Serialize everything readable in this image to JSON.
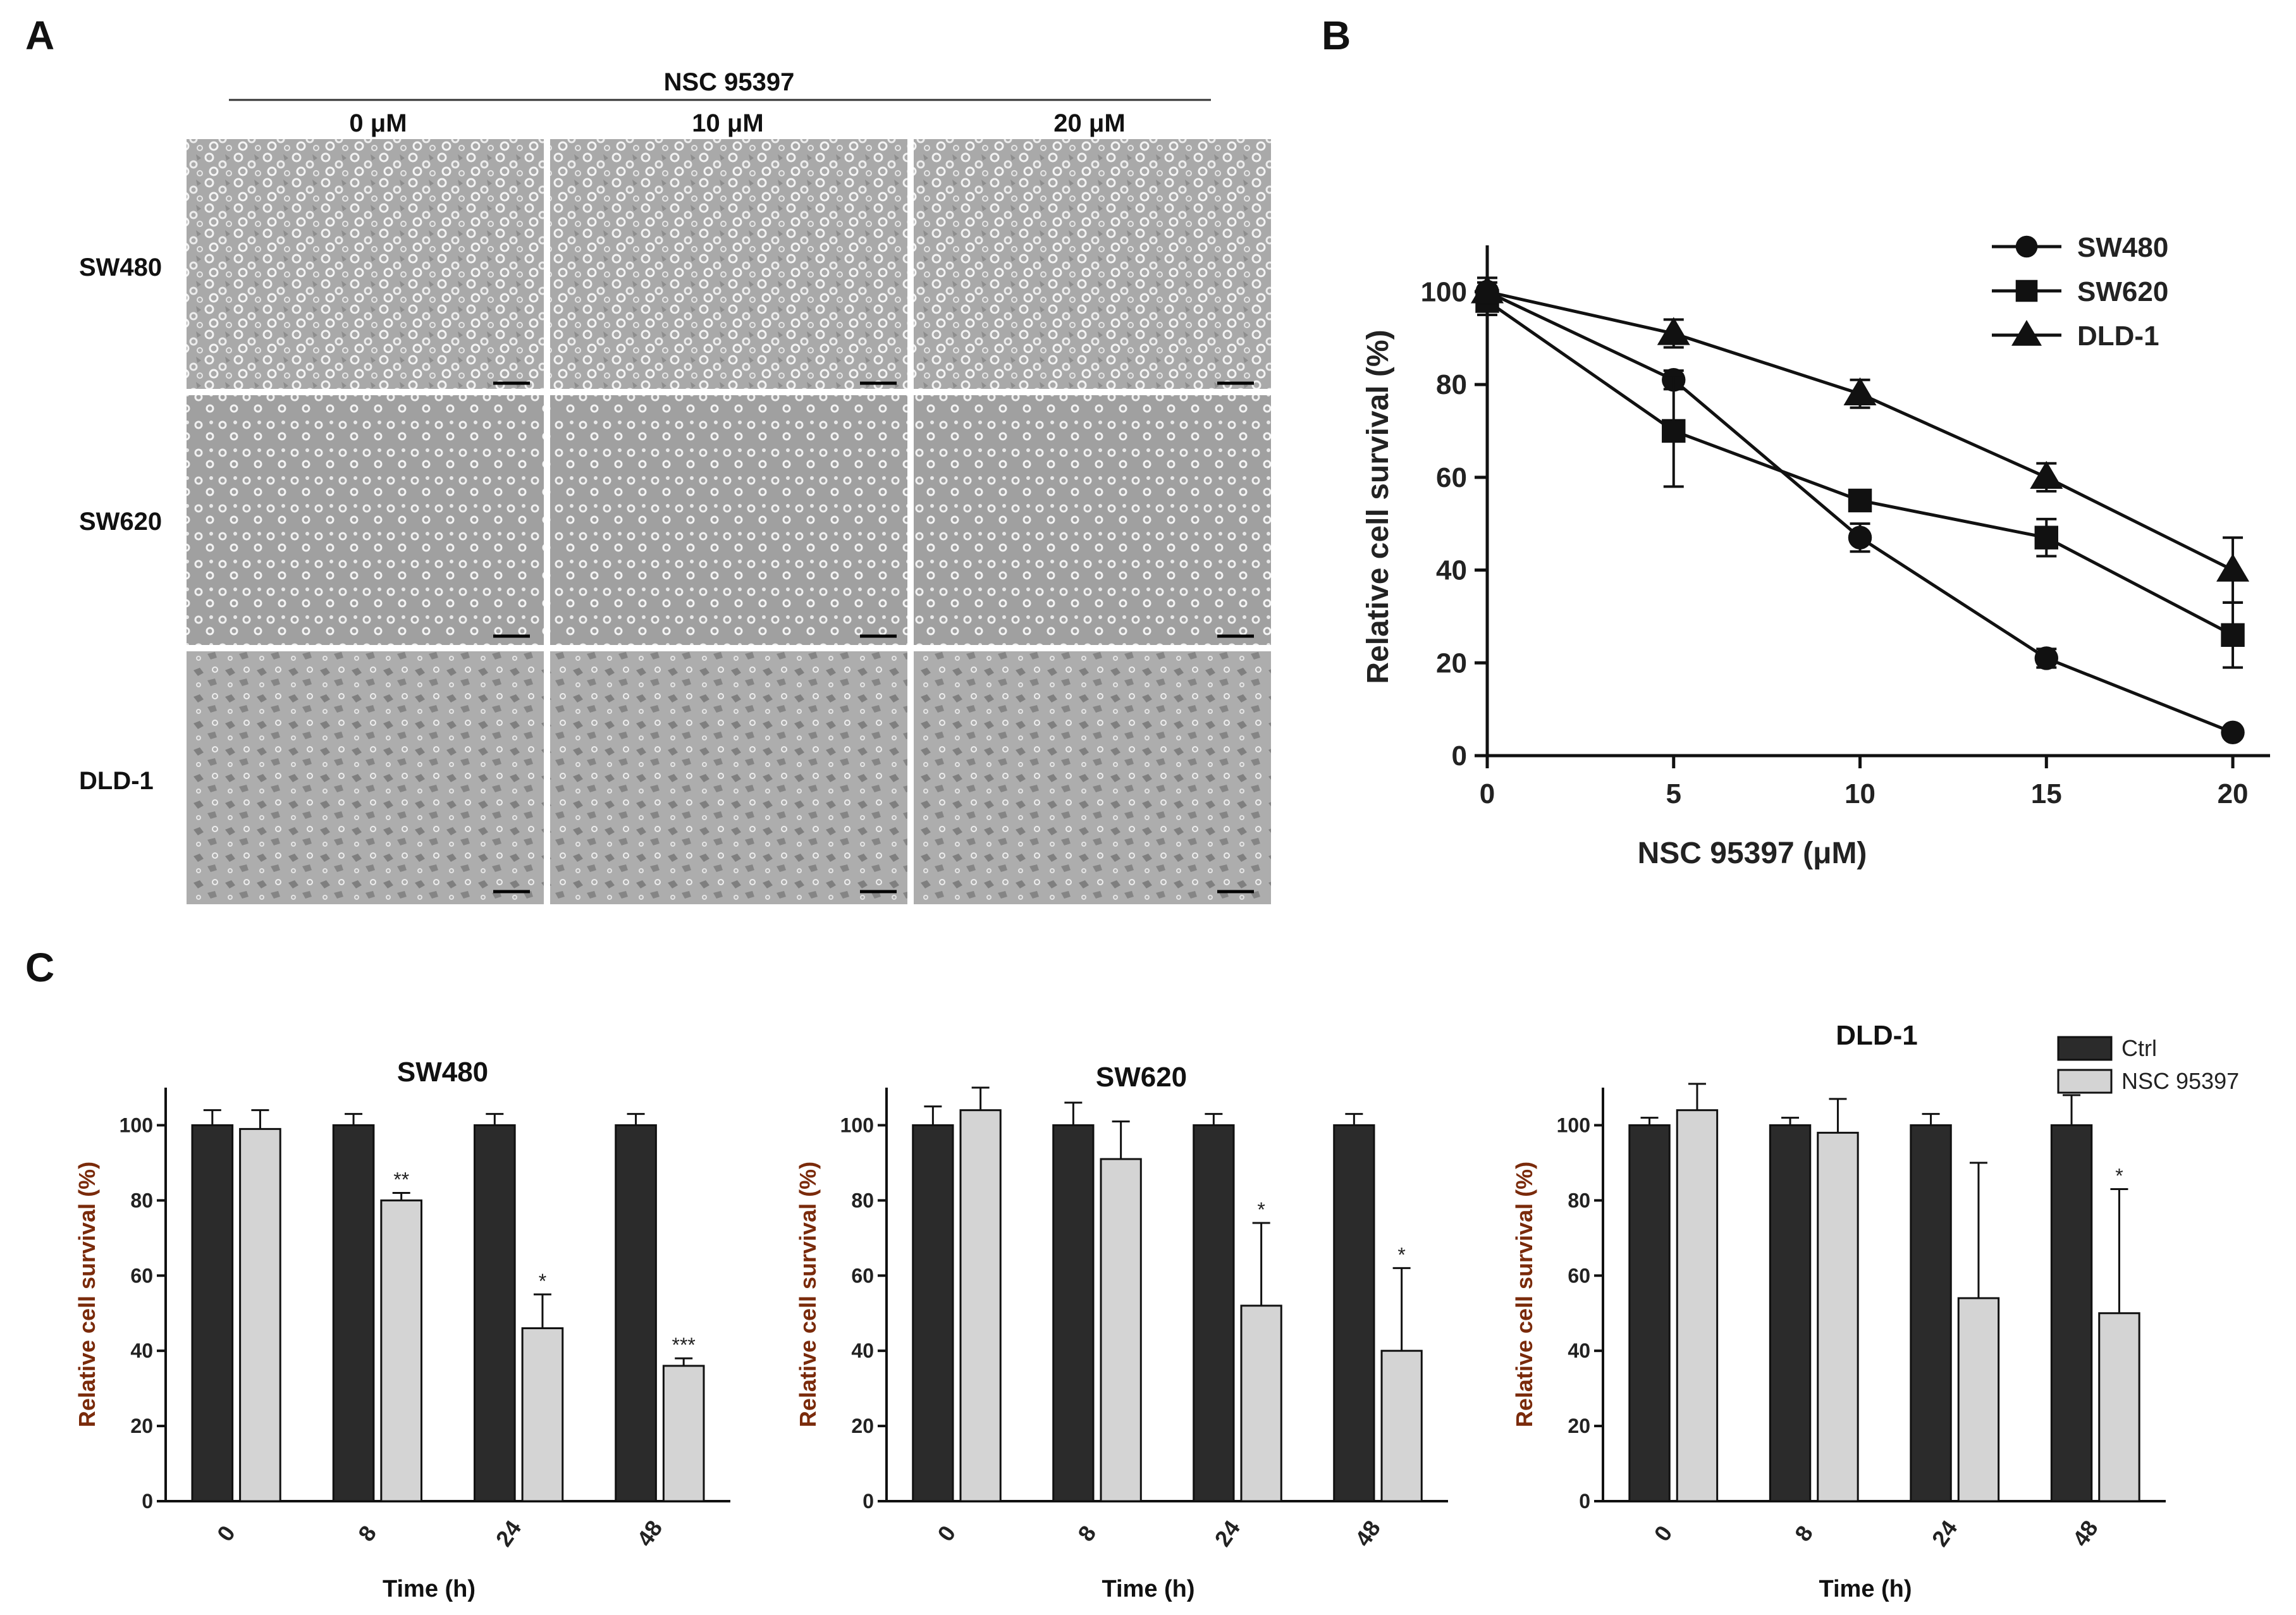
{
  "panel_a": {
    "letter": "A",
    "treatment": "NSC 95397",
    "columns": [
      "0 μM",
      "10 μM",
      "20 μM"
    ],
    "rows": [
      "SW480",
      "SW620",
      "DLD-1"
    ]
  },
  "panel_b": {
    "letter": "B",
    "chart_ref": 0
  },
  "panel_c": {
    "letter": "C"
  },
  "colors": {
    "ctrl": "#2b2b2b",
    "treated": "#d4d4d4",
    "ylabel_c": "#7a2a0a"
  },
  "chart_data": [
    {
      "type": "line",
      "title": "",
      "xlabel": "NSC 95397 (μM)",
      "ylabel": "Relative cell survival (%)",
      "x": [
        0,
        5,
        10,
        15,
        20
      ],
      "xticks": [
        "0",
        "5",
        "10",
        "15",
        "20"
      ],
      "yticks": [
        "0",
        "20",
        "40",
        "60",
        "80",
        "100"
      ],
      "xlim": [
        0,
        21
      ],
      "ylim": [
        0,
        110
      ],
      "series": [
        {
          "name": "SW480",
          "marker": "circle",
          "values": [
            100,
            81,
            47,
            21,
            5
          ],
          "errors": [
            2,
            2,
            3,
            2,
            1
          ]
        },
        {
          "name": "SW620",
          "marker": "square",
          "values": [
            98,
            70,
            55,
            47,
            26
          ],
          "errors": [
            3,
            12,
            1,
            4,
            7
          ]
        },
        {
          "name": "DLD-1",
          "marker": "triangle",
          "values": [
            100,
            91,
            78,
            60,
            40
          ],
          "errors": [
            3,
            3,
            3,
            3,
            7
          ]
        }
      ]
    },
    {
      "type": "bar",
      "title": "SW480",
      "xlabel": "Time (h)",
      "ylabel": "Relative cell survival (%)",
      "categories": [
        "0",
        "8",
        "24",
        "48"
      ],
      "ylim": [
        0,
        110
      ],
      "yticks": [
        "0",
        "20",
        "40",
        "60",
        "80",
        "100"
      ],
      "series": [
        {
          "name": "Ctrl",
          "values": [
            100,
            100,
            100,
            100
          ],
          "errors": [
            4,
            3,
            3,
            3
          ]
        },
        {
          "name": "NSC 95397",
          "values": [
            99,
            80,
            46,
            36
          ],
          "errors": [
            5,
            2,
            9,
            2
          ]
        }
      ],
      "annotations": [
        "",
        "**",
        "*",
        "***"
      ]
    },
    {
      "type": "bar",
      "title": "SW620",
      "xlabel": "Time (h)",
      "ylabel": "Relative cell survival (%)",
      "categories": [
        "0",
        "8",
        "24",
        "48"
      ],
      "ylim": [
        0,
        110
      ],
      "yticks": [
        "0",
        "20",
        "40",
        "60",
        "80",
        "100"
      ],
      "series": [
        {
          "name": "Ctrl",
          "values": [
            100,
            100,
            100,
            100
          ],
          "errors": [
            5,
            6,
            3,
            3
          ]
        },
        {
          "name": "NSC 95397",
          "values": [
            104,
            91,
            52,
            40
          ],
          "errors": [
            6,
            10,
            22,
            22
          ]
        }
      ],
      "annotations": [
        "",
        "",
        "*",
        "*"
      ]
    },
    {
      "type": "bar",
      "title": "DLD-1",
      "xlabel": "Time (h)",
      "ylabel": "Relative cell survival (%)",
      "categories": [
        "0",
        "8",
        "24",
        "48"
      ],
      "ylim": [
        0,
        110
      ],
      "yticks": [
        "0",
        "20",
        "40",
        "60",
        "80",
        "100"
      ],
      "series": [
        {
          "name": "Ctrl",
          "values": [
            100,
            100,
            100,
            100
          ],
          "errors": [
            2,
            2,
            3,
            8
          ]
        },
        {
          "name": "NSC 95397",
          "values": [
            104,
            98,
            54,
            50
          ],
          "errors": [
            7,
            9,
            36,
            33
          ]
        }
      ],
      "annotations": [
        "",
        "",
        "",
        "*"
      ],
      "legend": [
        "Ctrl",
        "NSC 95397"
      ]
    }
  ]
}
